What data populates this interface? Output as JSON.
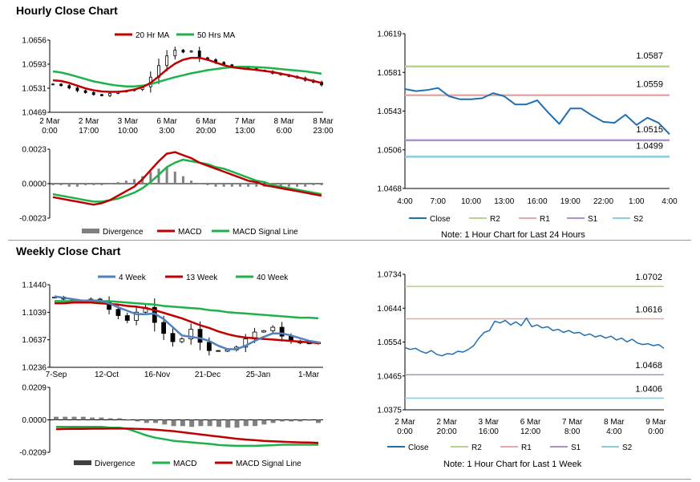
{
  "sections": {
    "hourly_title": "Hourly Close Chart",
    "weekly_title": "Weekly Close Chart"
  },
  "notes": {
    "hourly": "Note: 1 Hour Chart for Last 24 Hours",
    "weekly": "Note: 1 Hour Chart for Last 1 Week"
  },
  "colors": {
    "ma_short": "#c00000",
    "ma_long": "#1fb24a",
    "ma_4week": "#4f81bd",
    "divergence": "#808080",
    "close_line": "#1f6fb2",
    "r2": "#b5d38c",
    "r1": "#e6a8a8",
    "s1": "#a994c8",
    "s2": "#8ccbe0",
    "separator": "#9a9a9a"
  },
  "chart_data": [
    {
      "id": "hourly_price",
      "type": "line",
      "subtype": "candlestick-with-moving-averages",
      "legend": [
        "20 Hr MA",
        "50 Hrs MA"
      ],
      "legend_position": "top",
      "y_ticks": [
        "1.0656",
        "1.0593",
        "1.0531",
        "1.0469"
      ],
      "ylim": [
        1.0469,
        1.0656
      ],
      "x_ticks": [
        [
          "2 Mar",
          "0:00"
        ],
        [
          "2 Mar",
          "17:00"
        ],
        [
          "3 Mar",
          "10:00"
        ],
        [
          "6 Mar",
          "3:00"
        ],
        [
          "6 Mar",
          "20:00"
        ],
        [
          "7 Mar",
          "13:00"
        ],
        [
          "8 Mar",
          "6:00"
        ],
        [
          "8 Mar",
          "23:00"
        ]
      ],
      "close": [
        1.0542,
        1.0538,
        1.0532,
        1.0525,
        1.052,
        1.0515,
        1.0512,
        1.0518,
        1.0522,
        1.0525,
        1.0528,
        1.0535,
        1.056,
        1.059,
        1.0615,
        1.063,
        1.0625,
        1.0628,
        1.061,
        1.0605,
        1.0598,
        1.0592,
        1.0588,
        1.0585,
        1.0582,
        1.0578,
        1.0575,
        1.057,
        1.0566,
        1.0562,
        1.0558,
        1.0552,
        1.0547,
        1.054
      ],
      "series": [
        {
          "name": "20 Hr MA",
          "values": [
            1.0552,
            1.055,
            1.0545,
            1.0538,
            1.0531,
            1.0526,
            1.0523,
            1.0522,
            1.0522,
            1.0524,
            1.0528,
            1.0534,
            1.0545,
            1.0562,
            1.058,
            1.0595,
            1.0605,
            1.061,
            1.061,
            1.0605,
            1.0598,
            1.0591,
            1.0586,
            1.0583,
            1.0581,
            1.0579,
            1.0576,
            1.0573,
            1.0569,
            1.0565,
            1.056,
            1.0555,
            1.055,
            1.0545
          ]
        },
        {
          "name": "50 Hrs MA",
          "values": [
            1.0575,
            1.0572,
            1.0567,
            1.0561,
            1.0555,
            1.0549,
            1.0545,
            1.0541,
            1.0538,
            1.0536,
            1.0536,
            1.0538,
            1.0542,
            1.0548,
            1.0554,
            1.056,
            1.0565,
            1.057,
            1.0574,
            1.0578,
            1.0581,
            1.0584,
            1.0586,
            1.0587,
            1.0587,
            1.0586,
            1.0585,
            1.0583,
            1.0581,
            1.0579,
            1.0577,
            1.0575,
            1.0572,
            1.0569
          ]
        }
      ]
    },
    {
      "id": "hourly_macd",
      "type": "line",
      "subtype": "macd",
      "legend": [
        "Divergence",
        "MACD",
        "MACD Signal Line"
      ],
      "legend_position": "bottom",
      "y_ticks": [
        "0.0023",
        "0.0000",
        "-0.0023"
      ],
      "ylim": [
        -0.0023,
        0.0023
      ],
      "divergence": [
        -0.0001,
        -0.0001,
        -0.0002,
        -0.0002,
        -0.0001,
        -0.0001,
        -0.0001,
        0,
        0.0001,
        0.0002,
        0.0003,
        0.0005,
        0.0008,
        0.001,
        0.0011,
        0.0008,
        0.0005,
        0.0002,
        0,
        -0.0001,
        -0.0002,
        -0.0002,
        -0.0002,
        -0.0002,
        -0.0002,
        -0.0002,
        -0.0002,
        -0.0002,
        -0.0002,
        -0.0002,
        -0.0002,
        -0.0002,
        -0.0001,
        -0.0001
      ],
      "series": [
        {
          "name": "MACD",
          "values": [
            -0.0009,
            -0.001,
            -0.0011,
            -0.0012,
            -0.0013,
            -0.0014,
            -0.0013,
            -0.0011,
            -0.0008,
            -0.0005,
            -0.0002,
            0.0003,
            0.0009,
            0.0015,
            0.002,
            0.0021,
            0.0019,
            0.0017,
            0.0014,
            0.0012,
            0.001,
            0.0008,
            0.0006,
            0.0004,
            0.0002,
            0.0001,
            -0.0001,
            -0.0002,
            -0.0003,
            -0.0004,
            -0.0005,
            -0.0006,
            -0.0007,
            -0.0008
          ]
        },
        {
          "name": "MACD Signal Line",
          "values": [
            -0.0007,
            -0.0008,
            -0.0009,
            -0.001,
            -0.0011,
            -0.0012,
            -0.0012,
            -0.0011,
            -0.001,
            -0.0008,
            -0.0006,
            -0.0003,
            0.0001,
            0.0006,
            0.0011,
            0.0014,
            0.0016,
            0.0015,
            0.0014,
            0.0013,
            0.0011,
            0.001,
            0.0008,
            0.0006,
            0.0004,
            0.0002,
            0.0001,
            -0.0001,
            -0.0002,
            -0.0003,
            -0.0004,
            -0.0005,
            -0.0006,
            -0.0007
          ]
        }
      ]
    },
    {
      "id": "hourly_levels",
      "type": "line",
      "legend": [
        "Close",
        "R2",
        "R1",
        "S1",
        "S2"
      ],
      "legend_position": "bottom",
      "y_ticks": [
        "1.0619",
        "1.0581",
        "1.0543",
        "1.0506",
        "1.0468"
      ],
      "ylim": [
        1.0468,
        1.0619
      ],
      "x_ticks": [
        "4:00",
        "7:00",
        "10:00",
        "13:00",
        "16:00",
        "19:00",
        "22:00",
        "1:00",
        "4:00"
      ],
      "levels": [
        {
          "name": "R2",
          "value": 1.0587,
          "label": "1.0587"
        },
        {
          "name": "R1",
          "value": 1.0559,
          "label": "1.0559"
        },
        {
          "name": "S1",
          "value": 1.0515,
          "label": "1.0515"
        },
        {
          "name": "S2",
          "value": 1.0499,
          "label": "1.0499"
        }
      ],
      "series": [
        {
          "name": "Close",
          "values": [
            1.0565,
            1.0563,
            1.0564,
            1.0566,
            1.0558,
            1.0555,
            1.0555,
            1.0556,
            1.0561,
            1.0558,
            1.055,
            1.055,
            1.0554,
            1.0542,
            1.0531,
            1.0546,
            1.0546,
            1.0539,
            1.0533,
            1.0532,
            1.054,
            1.053,
            1.0537,
            1.0532,
            1.0521
          ]
        }
      ]
    },
    {
      "id": "weekly_price",
      "type": "line",
      "subtype": "candlestick-with-moving-averages",
      "legend": [
        "4 Week",
        "13 Week",
        "40 Week"
      ],
      "legend_position": "top",
      "y_ticks": [
        "1.1440",
        "1.1039",
        "1.0637",
        "1.0236"
      ],
      "ylim": [
        1.0236,
        1.144
      ],
      "x_ticks": [
        "7-Sep",
        "12-Oct",
        "16-Nov",
        "21-Dec",
        "25-Jan",
        "1-Mar"
      ],
      "close": [
        1.126,
        1.123,
        1.121,
        1.119,
        1.123,
        1.12,
        1.108,
        1.099,
        1.092,
        1.104,
        1.111,
        1.089,
        1.073,
        1.061,
        1.065,
        1.079,
        1.06,
        1.048,
        1.047,
        1.049,
        1.053,
        1.065,
        1.075,
        1.077,
        1.082,
        1.069,
        1.062,
        1.059,
        1.058,
        1.06
      ],
      "series": [
        {
          "name": "4 Week",
          "values": [
            1.127,
            1.125,
            1.123,
            1.121,
            1.121,
            1.121,
            1.117,
            1.111,
            1.106,
            1.101,
            1.101,
            1.102,
            1.094,
            1.082,
            1.07,
            1.068,
            1.066,
            1.062,
            1.055,
            1.05,
            1.05,
            1.055,
            1.062,
            1.068,
            1.073,
            1.073,
            1.07,
            1.066,
            1.062,
            1.06
          ]
        },
        {
          "name": "13 Week",
          "values": [
            1.117,
            1.117,
            1.118,
            1.118,
            1.118,
            1.117,
            1.116,
            1.115,
            1.113,
            1.112,
            1.11,
            1.107,
            1.103,
            1.099,
            1.095,
            1.09,
            1.085,
            1.081,
            1.076,
            1.072,
            1.069,
            1.067,
            1.066,
            1.065,
            1.064,
            1.063,
            1.062,
            1.061,
            1.06,
            1.059
          ]
        },
        {
          "name": "40 Week",
          "values": [
            1.12,
            1.12,
            1.12,
            1.12,
            1.12,
            1.12,
            1.12,
            1.119,
            1.118,
            1.117,
            1.116,
            1.115,
            1.113,
            1.112,
            1.111,
            1.11,
            1.109,
            1.107,
            1.106,
            1.104,
            1.103,
            1.102,
            1.101,
            1.1,
            1.099,
            1.098,
            1.097,
            1.096,
            1.096,
            1.095
          ]
        }
      ]
    },
    {
      "id": "weekly_macd",
      "type": "line",
      "subtype": "macd",
      "legend": [
        "Divergence",
        "MACD",
        "MACD Signal Line"
      ],
      "legend_position": "bottom",
      "y_ticks": [
        "0.0209",
        "0.0000",
        "-0.0209"
      ],
      "ylim": [
        -0.0209,
        0.0209
      ],
      "divergence": [
        0.002,
        0.002,
        0.002,
        0.002,
        0.0015,
        0.0015,
        0.001,
        0.001,
        0,
        -0.001,
        -0.002,
        -0.002,
        -0.003,
        -0.004,
        -0.004,
        -0.0045,
        -0.004,
        -0.004,
        -0.0045,
        -0.005,
        -0.005,
        -0.004,
        -0.004,
        -0.003,
        -0.002,
        -0.001,
        -0.001,
        -0.001,
        -0.0005,
        -0.002
      ],
      "series": [
        {
          "name": "MACD",
          "values": [
            -0.0045,
            -0.0045,
            -0.0045,
            -0.0045,
            -0.0045,
            -0.0045,
            -0.005,
            -0.005,
            -0.006,
            -0.008,
            -0.01,
            -0.0115,
            -0.0125,
            -0.0135,
            -0.014,
            -0.0145,
            -0.015,
            -0.0155,
            -0.0162,
            -0.0165,
            -0.0167,
            -0.0167,
            -0.0167,
            -0.0165,
            -0.0163,
            -0.016,
            -0.016,
            -0.016,
            -0.016,
            -0.016
          ]
        },
        {
          "name": "MACD Signal Line",
          "values": [
            -0.006,
            -0.0059,
            -0.0058,
            -0.0058,
            -0.0057,
            -0.0057,
            -0.0056,
            -0.0056,
            -0.0056,
            -0.0058,
            -0.006,
            -0.0063,
            -0.0068,
            -0.0073,
            -0.008,
            -0.0087,
            -0.0094,
            -0.0101,
            -0.0108,
            -0.0115,
            -0.0122,
            -0.0127,
            -0.0131,
            -0.0135,
            -0.0138,
            -0.0141,
            -0.0143,
            -0.0145,
            -0.0146,
            -0.0148
          ]
        }
      ]
    },
    {
      "id": "weekly_levels",
      "type": "line",
      "legend": [
        "Close",
        "R2",
        "R1",
        "S1",
        "S2"
      ],
      "legend_position": "bottom",
      "y_ticks": [
        "1.0734",
        "1.0644",
        "1.0554",
        "1.0465",
        "1.0375"
      ],
      "ylim": [
        1.0375,
        1.0734
      ],
      "x_ticks": [
        [
          "2 Mar",
          "0:00"
        ],
        [
          "2 Mar",
          "20:00"
        ],
        [
          "3 Mar",
          "16:00"
        ],
        [
          "6 Mar",
          "12:00"
        ],
        [
          "7 Mar",
          "8:00"
        ],
        [
          "8 Mar",
          "4:00"
        ],
        [
          "9 Mar",
          "0:00"
        ]
      ],
      "levels": [
        {
          "name": "R2",
          "value": 1.0702,
          "label": "1.0702"
        },
        {
          "name": "R1",
          "value": 1.0616,
          "label": "1.0616"
        },
        {
          "name": "S1",
          "value": 1.0468,
          "label": "1.0468"
        },
        {
          "name": "S2",
          "value": 1.0406,
          "label": "1.0406"
        }
      ],
      "series": [
        {
          "name": "Close",
          "values": [
            1.054,
            1.0535,
            1.0538,
            1.053,
            1.0525,
            1.0532,
            1.0522,
            1.0518,
            1.0524,
            1.0522,
            1.053,
            1.0528,
            1.0535,
            1.0545,
            1.0565,
            1.058,
            1.0585,
            1.061,
            1.0605,
            1.0612,
            1.06,
            1.0608,
            1.0598,
            1.0618,
            1.0595,
            1.06,
            1.0592,
            1.0595,
            1.0585,
            1.0588,
            1.058,
            1.0585,
            1.0578,
            1.058,
            1.0572,
            1.0576,
            1.0568,
            1.0572,
            1.0565,
            1.057,
            1.056,
            1.0565,
            1.0555,
            1.0562,
            1.0552,
            1.0548,
            1.055,
            1.0545,
            1.0548,
            1.0538
          ]
        }
      ]
    }
  ]
}
